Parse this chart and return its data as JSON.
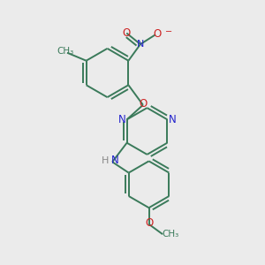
{
  "bg_color": "#ebebeb",
  "bond_color": "#3a7a5a",
  "N_color": "#2222cc",
  "O_color": "#cc2222",
  "H_color": "#888888",
  "bond_lw": 1.4,
  "figsize": [
    3.0,
    3.0
  ],
  "dpi": 100,
  "xlim": [
    0,
    10
  ],
  "ylim": [
    0,
    10
  ]
}
